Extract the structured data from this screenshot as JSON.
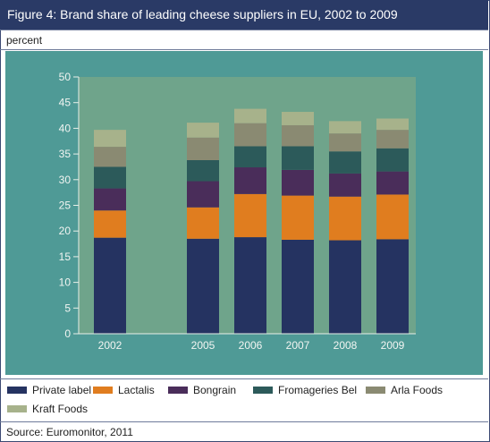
{
  "title": "Figure 4: Brand share of leading cheese suppliers in EU, 2002 to 2009",
  "unit": "percent",
  "source": "Source: Euromonitor, 2011",
  "colors": {
    "title_bg": "#2a3a66",
    "plot_bg": "#4f9a96",
    "inner_bg": "#6fa48b"
  },
  "chart_data": {
    "type": "bar",
    "stacked": true,
    "categories": [
      "2002",
      "2005",
      "2006",
      "2007",
      "2008",
      "2009"
    ],
    "ylim": [
      0,
      50
    ],
    "yticks": [
      "0",
      "5",
      "10",
      "15",
      "20",
      "25",
      "30",
      "35",
      "40",
      "45",
      "50"
    ],
    "xlabel": "",
    "ylabel": "",
    "legend_position": "bottom",
    "series": [
      {
        "name": "Private label",
        "color": "#253361",
        "values": [
          18.7,
          18.5,
          18.8,
          18.3,
          18.2,
          18.4
        ]
      },
      {
        "name": "Lactalis",
        "color": "#e07d1f",
        "values": [
          5.3,
          6.1,
          8.4,
          8.6,
          8.5,
          8.7
        ]
      },
      {
        "name": "Bongrain",
        "color": "#4a2d5a",
        "values": [
          4.3,
          5.1,
          5.2,
          5.0,
          4.5,
          4.5
        ]
      },
      {
        "name": "Fromageries Bel",
        "color": "#2c5a5a",
        "values": [
          4.2,
          4.1,
          4.1,
          4.6,
          4.3,
          4.5
        ]
      },
      {
        "name": "Arla Foods",
        "color": "#8a8a72",
        "values": [
          3.9,
          4.4,
          4.5,
          4.1,
          3.5,
          3.6
        ]
      },
      {
        "name": "Kraft Foods",
        "color": "#a7b28b",
        "values": [
          3.3,
          2.9,
          2.8,
          2.6,
          2.4,
          2.2
        ]
      }
    ]
  }
}
